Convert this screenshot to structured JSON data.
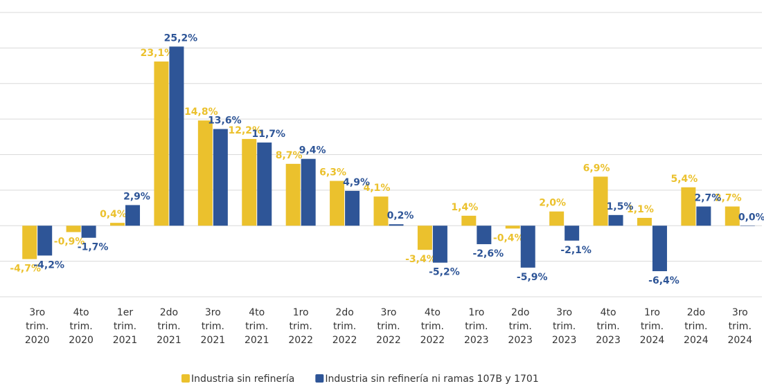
{
  "chart_data": {
    "type": "bar",
    "categories": [
      "3ro trim. 2020",
      "4to trim. 2020",
      "1er trim. 2021",
      "2do trim. 2021",
      "3ro trim. 2021",
      "4to trim. 2021",
      "1ro trim. 2022",
      "2do trim. 2022",
      "3ro trim. 2022",
      "4to trim. 2022",
      "1ro trim. 2023",
      "2do trim. 2023",
      "3ro trim. 2023",
      "4to trim. 2023",
      "1ro trim. 2024",
      "2do trim. 2024",
      "3ro trim. 2024"
    ],
    "series": [
      {
        "name": "Industria sin refinería",
        "color": "#EBC12D",
        "values": [
          -4.7,
          -0.9,
          0.4,
          23.1,
          14.8,
          12.2,
          8.7,
          6.3,
          4.1,
          -3.4,
          1.4,
          -0.4,
          2.0,
          6.9,
          1.1,
          5.4,
          2.7
        ],
        "value_labels": [
          "-4,7%",
          "-0,9%",
          "0,4%",
          "23,1%",
          "14,8%",
          "12,2%",
          "8,7%",
          "6,3%",
          "4,1%",
          "-3,4%",
          "1,4%",
          "-0,4%",
          "2,0%",
          "6,9%",
          "1,1%",
          "5,4%",
          "2,7%"
        ]
      },
      {
        "name": "Industria sin refinería ni ramas 107B y 1701",
        "color": "#2E5597",
        "values": [
          -4.2,
          -1.7,
          2.9,
          25.2,
          13.6,
          11.7,
          9.4,
          4.9,
          0.2,
          -5.2,
          -2.6,
          -5.9,
          -2.1,
          1.5,
          -6.4,
          2.7,
          0.0
        ],
        "value_labels": [
          "-4,2%",
          "-1,7%",
          "2,9%",
          "25,2%",
          "13,6%",
          "11,7%",
          "9,4%",
          "4,9%",
          "0,2%",
          "-5,2%",
          "-2,6%",
          "-5,9%",
          "-2,1%",
          "1,5%",
          "-6,4%",
          "2,7%",
          "0,0%"
        ]
      }
    ],
    "ylim": [
      -10,
      30
    ],
    "yticks": [
      -10,
      -5,
      0,
      5,
      10,
      15,
      20,
      25,
      30
    ],
    "grid": true
  }
}
